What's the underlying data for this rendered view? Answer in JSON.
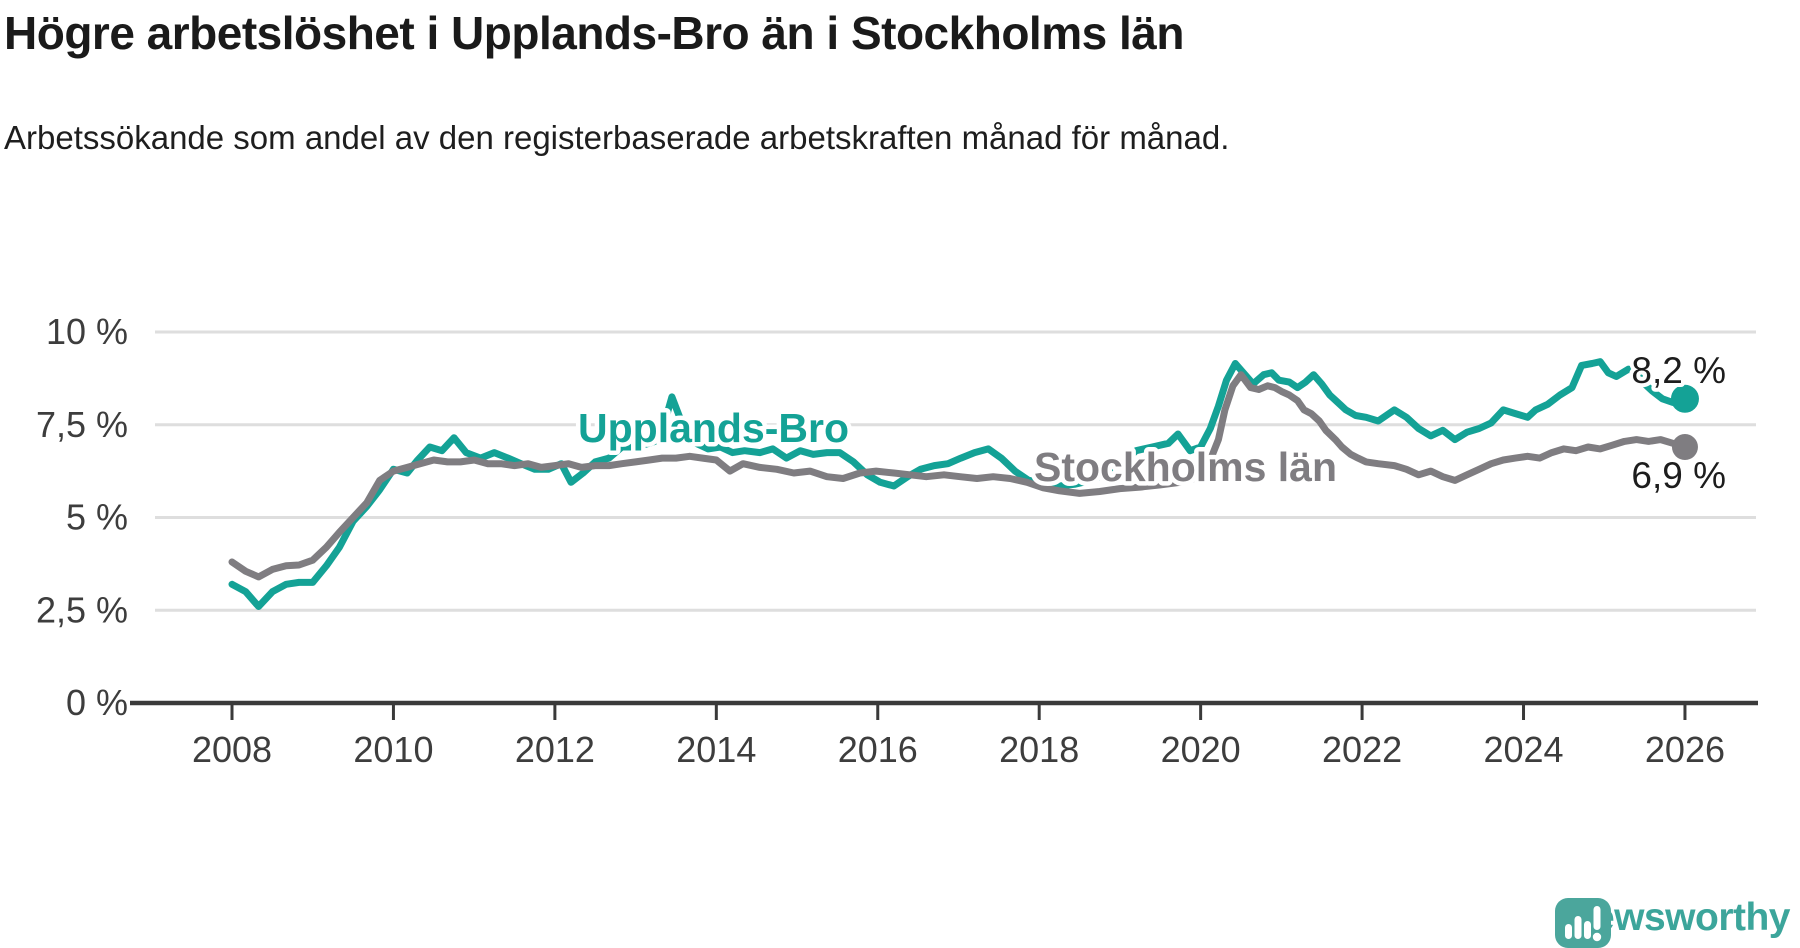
{
  "title": "Högre arbetslöshet i Upplands-Bro än i Stockholms län",
  "subtitle": "Arbetssökande som andel av den registerbaserade arbetskraften månad för månad.",
  "branding": {
    "name": "Newsworthy",
    "logo_icon": "speech-bubble-bar-chart-icon",
    "logo_color": "#4ba69c",
    "wordmark_color": "#3ca59b"
  },
  "colors": {
    "background": "#ffffff",
    "gridline": "#dedede",
    "axis": "#3a3a3a",
    "title_text": "#1a1a1a",
    "axis_text": "#3d3d3d",
    "upplands_bro": "#14a296",
    "stockholms_lan": "#7f7d81"
  },
  "chart_data": {
    "type": "line",
    "title": "Högre arbetslöshet i Upplands-Bro än i Stockholms län",
    "subtitle": "Arbetssökande som andel av den registerbaserade arbetskraften månad för månad.",
    "xlabel": "",
    "ylabel": "",
    "grid": "horizontal",
    "legend_position": "inline-labels",
    "x_axis": {
      "ticks": [
        2008,
        2010,
        2012,
        2014,
        2016,
        2018,
        2020,
        2022,
        2024,
        2026
      ],
      "range": [
        2007.05,
        2026.9
      ]
    },
    "y_axis": {
      "tick_values": [
        0,
        2.5,
        5,
        7.5,
        10
      ],
      "tick_labels": [
        "0 %",
        "2,5 %",
        "5 %",
        "7,5 %",
        "10 %"
      ],
      "range": [
        0,
        10.8
      ]
    },
    "series": [
      {
        "name": "Upplands-Bro",
        "color": "#14a296",
        "end_label": "8,2 %",
        "end_value": 8.2,
        "points": [
          [
            2008.0,
            3.2
          ],
          [
            2008.17,
            3.0
          ],
          [
            2008.33,
            2.6
          ],
          [
            2008.5,
            3.0
          ],
          [
            2008.67,
            3.2
          ],
          [
            2008.83,
            3.25
          ],
          [
            2009.0,
            3.25
          ],
          [
            2009.17,
            3.7
          ],
          [
            2009.33,
            4.2
          ],
          [
            2009.5,
            4.9
          ],
          [
            2009.67,
            5.3
          ],
          [
            2009.83,
            5.75
          ],
          [
            2010.0,
            6.3
          ],
          [
            2010.17,
            6.2
          ],
          [
            2010.3,
            6.55
          ],
          [
            2010.45,
            6.9
          ],
          [
            2010.6,
            6.8
          ],
          [
            2010.75,
            7.15
          ],
          [
            2010.9,
            6.75
          ],
          [
            2011.08,
            6.6
          ],
          [
            2011.25,
            6.75
          ],
          [
            2011.42,
            6.6
          ],
          [
            2011.58,
            6.45
          ],
          [
            2011.75,
            6.3
          ],
          [
            2011.92,
            6.3
          ],
          [
            2012.08,
            6.45
          ],
          [
            2012.2,
            5.95
          ],
          [
            2012.35,
            6.2
          ],
          [
            2012.5,
            6.5
          ],
          [
            2012.67,
            6.6
          ],
          [
            2012.83,
            6.9
          ],
          [
            2013.0,
            6.9
          ],
          [
            2013.17,
            7.0
          ],
          [
            2013.3,
            7.1
          ],
          [
            2013.45,
            8.25
          ],
          [
            2013.6,
            7.4
          ],
          [
            2013.75,
            7.0
          ],
          [
            2013.9,
            6.85
          ],
          [
            2014.05,
            6.9
          ],
          [
            2014.2,
            6.75
          ],
          [
            2014.35,
            6.8
          ],
          [
            2014.54,
            6.75
          ],
          [
            2014.7,
            6.85
          ],
          [
            2014.87,
            6.6
          ],
          [
            2015.04,
            6.8
          ],
          [
            2015.2,
            6.7
          ],
          [
            2015.37,
            6.75
          ],
          [
            2015.53,
            6.75
          ],
          [
            2015.7,
            6.5
          ],
          [
            2015.87,
            6.15
          ],
          [
            2016.03,
            5.95
          ],
          [
            2016.2,
            5.85
          ],
          [
            2016.37,
            6.1
          ],
          [
            2016.53,
            6.3
          ],
          [
            2016.7,
            6.4
          ],
          [
            2016.87,
            6.45
          ],
          [
            2017.03,
            6.6
          ],
          [
            2017.2,
            6.75
          ],
          [
            2017.37,
            6.85
          ],
          [
            2017.53,
            6.6
          ],
          [
            2017.7,
            6.25
          ],
          [
            2017.87,
            6.0
          ],
          [
            2018.05,
            5.95
          ],
          [
            2018.25,
            5.85
          ],
          [
            2018.45,
            5.9
          ],
          [
            2018.65,
            6.0
          ],
          [
            2018.85,
            6.2
          ],
          [
            2019.05,
            6.5
          ],
          [
            2019.2,
            6.8
          ],
          [
            2019.4,
            6.9
          ],
          [
            2019.6,
            7.0
          ],
          [
            2019.72,
            7.25
          ],
          [
            2019.87,
            6.8
          ],
          [
            2020.0,
            6.9
          ],
          [
            2020.12,
            7.4
          ],
          [
            2020.22,
            8.0
          ],
          [
            2020.32,
            8.7
          ],
          [
            2020.43,
            9.15
          ],
          [
            2020.55,
            8.85
          ],
          [
            2020.65,
            8.6
          ],
          [
            2020.78,
            8.85
          ],
          [
            2020.88,
            8.9
          ],
          [
            2020.97,
            8.7
          ],
          [
            2021.1,
            8.65
          ],
          [
            2021.2,
            8.5
          ],
          [
            2021.3,
            8.65
          ],
          [
            2021.4,
            8.85
          ],
          [
            2021.5,
            8.6
          ],
          [
            2021.6,
            8.3
          ],
          [
            2021.7,
            8.1
          ],
          [
            2021.8,
            7.9
          ],
          [
            2021.92,
            7.75
          ],
          [
            2022.05,
            7.7
          ],
          [
            2022.2,
            7.6
          ],
          [
            2022.4,
            7.9
          ],
          [
            2022.55,
            7.7
          ],
          [
            2022.7,
            7.4
          ],
          [
            2022.85,
            7.2
          ],
          [
            2023.0,
            7.35
          ],
          [
            2023.15,
            7.1
          ],
          [
            2023.3,
            7.3
          ],
          [
            2023.45,
            7.4
          ],
          [
            2023.6,
            7.55
          ],
          [
            2023.75,
            7.9
          ],
          [
            2023.9,
            7.8
          ],
          [
            2024.05,
            7.7
          ],
          [
            2024.15,
            7.9
          ],
          [
            2024.3,
            8.05
          ],
          [
            2024.45,
            8.3
          ],
          [
            2024.6,
            8.5
          ],
          [
            2024.72,
            9.1
          ],
          [
            2024.85,
            9.15
          ],
          [
            2024.95,
            9.2
          ],
          [
            2025.05,
            8.9
          ],
          [
            2025.15,
            8.8
          ],
          [
            2025.3,
            9.0
          ],
          [
            2025.4,
            8.9
          ],
          [
            2025.5,
            8.6
          ],
          [
            2025.6,
            8.4
          ],
          [
            2025.72,
            8.2
          ],
          [
            2025.85,
            8.1
          ],
          [
            2026.0,
            8.2
          ]
        ]
      },
      {
        "name": "Stockholms län",
        "color": "#7f7d81",
        "end_label": "6,9 %",
        "end_value": 6.9,
        "points": [
          [
            2008.0,
            3.8
          ],
          [
            2008.17,
            3.55
          ],
          [
            2008.33,
            3.4
          ],
          [
            2008.5,
            3.6
          ],
          [
            2008.67,
            3.7
          ],
          [
            2008.83,
            3.72
          ],
          [
            2009.0,
            3.85
          ],
          [
            2009.17,
            4.2
          ],
          [
            2009.33,
            4.6
          ],
          [
            2009.5,
            5.0
          ],
          [
            2009.67,
            5.4
          ],
          [
            2009.83,
            6.0
          ],
          [
            2010.0,
            6.25
          ],
          [
            2010.17,
            6.35
          ],
          [
            2010.33,
            6.45
          ],
          [
            2010.5,
            6.55
          ],
          [
            2010.67,
            6.5
          ],
          [
            2010.83,
            6.5
          ],
          [
            2011.0,
            6.55
          ],
          [
            2011.17,
            6.45
          ],
          [
            2011.33,
            6.45
          ],
          [
            2011.5,
            6.4
          ],
          [
            2011.67,
            6.45
          ],
          [
            2011.83,
            6.35
          ],
          [
            2012.0,
            6.4
          ],
          [
            2012.17,
            6.45
          ],
          [
            2012.33,
            6.35
          ],
          [
            2012.5,
            6.4
          ],
          [
            2012.67,
            6.4
          ],
          [
            2012.83,
            6.45
          ],
          [
            2013.0,
            6.5
          ],
          [
            2013.17,
            6.55
          ],
          [
            2013.33,
            6.6
          ],
          [
            2013.5,
            6.6
          ],
          [
            2013.67,
            6.65
          ],
          [
            2013.83,
            6.6
          ],
          [
            2014.0,
            6.55
          ],
          [
            2014.17,
            6.25
          ],
          [
            2014.33,
            6.45
          ],
          [
            2014.54,
            6.35
          ],
          [
            2014.75,
            6.3
          ],
          [
            2014.96,
            6.2
          ],
          [
            2015.16,
            6.25
          ],
          [
            2015.37,
            6.1
          ],
          [
            2015.57,
            6.05
          ],
          [
            2015.78,
            6.2
          ],
          [
            2015.98,
            6.25
          ],
          [
            2016.2,
            6.2
          ],
          [
            2016.4,
            6.15
          ],
          [
            2016.6,
            6.1
          ],
          [
            2016.82,
            6.15
          ],
          [
            2017.02,
            6.1
          ],
          [
            2017.23,
            6.05
          ],
          [
            2017.43,
            6.1
          ],
          [
            2017.64,
            6.05
          ],
          [
            2017.85,
            5.95
          ],
          [
            2018.05,
            5.8
          ],
          [
            2018.25,
            5.72
          ],
          [
            2018.5,
            5.65
          ],
          [
            2018.75,
            5.7
          ],
          [
            2019.0,
            5.78
          ],
          [
            2019.25,
            5.82
          ],
          [
            2019.5,
            5.88
          ],
          [
            2019.75,
            5.95
          ],
          [
            2020.0,
            6.1
          ],
          [
            2020.12,
            6.55
          ],
          [
            2020.22,
            7.1
          ],
          [
            2020.3,
            7.9
          ],
          [
            2020.4,
            8.55
          ],
          [
            2020.5,
            8.85
          ],
          [
            2020.62,
            8.5
          ],
          [
            2020.72,
            8.45
          ],
          [
            2020.83,
            8.55
          ],
          [
            2020.92,
            8.5
          ],
          [
            2021.0,
            8.4
          ],
          [
            2021.1,
            8.3
          ],
          [
            2021.2,
            8.15
          ],
          [
            2021.28,
            7.9
          ],
          [
            2021.37,
            7.8
          ],
          [
            2021.47,
            7.6
          ],
          [
            2021.55,
            7.35
          ],
          [
            2021.67,
            7.1
          ],
          [
            2021.75,
            6.9
          ],
          [
            2021.86,
            6.7
          ],
          [
            2021.95,
            6.6
          ],
          [
            2022.05,
            6.5
          ],
          [
            2022.2,
            6.45
          ],
          [
            2022.4,
            6.4
          ],
          [
            2022.55,
            6.3
          ],
          [
            2022.7,
            6.15
          ],
          [
            2022.85,
            6.25
          ],
          [
            2023.0,
            6.1
          ],
          [
            2023.15,
            6.0
          ],
          [
            2023.3,
            6.15
          ],
          [
            2023.45,
            6.3
          ],
          [
            2023.6,
            6.45
          ],
          [
            2023.75,
            6.55
          ],
          [
            2023.9,
            6.6
          ],
          [
            2024.05,
            6.65
          ],
          [
            2024.2,
            6.6
          ],
          [
            2024.35,
            6.75
          ],
          [
            2024.5,
            6.85
          ],
          [
            2024.65,
            6.8
          ],
          [
            2024.8,
            6.9
          ],
          [
            2024.95,
            6.85
          ],
          [
            2025.1,
            6.95
          ],
          [
            2025.25,
            7.05
          ],
          [
            2025.4,
            7.1
          ],
          [
            2025.55,
            7.05
          ],
          [
            2025.7,
            7.1
          ],
          [
            2025.85,
            7.0
          ],
          [
            2026.0,
            6.9
          ]
        ]
      }
    ]
  }
}
